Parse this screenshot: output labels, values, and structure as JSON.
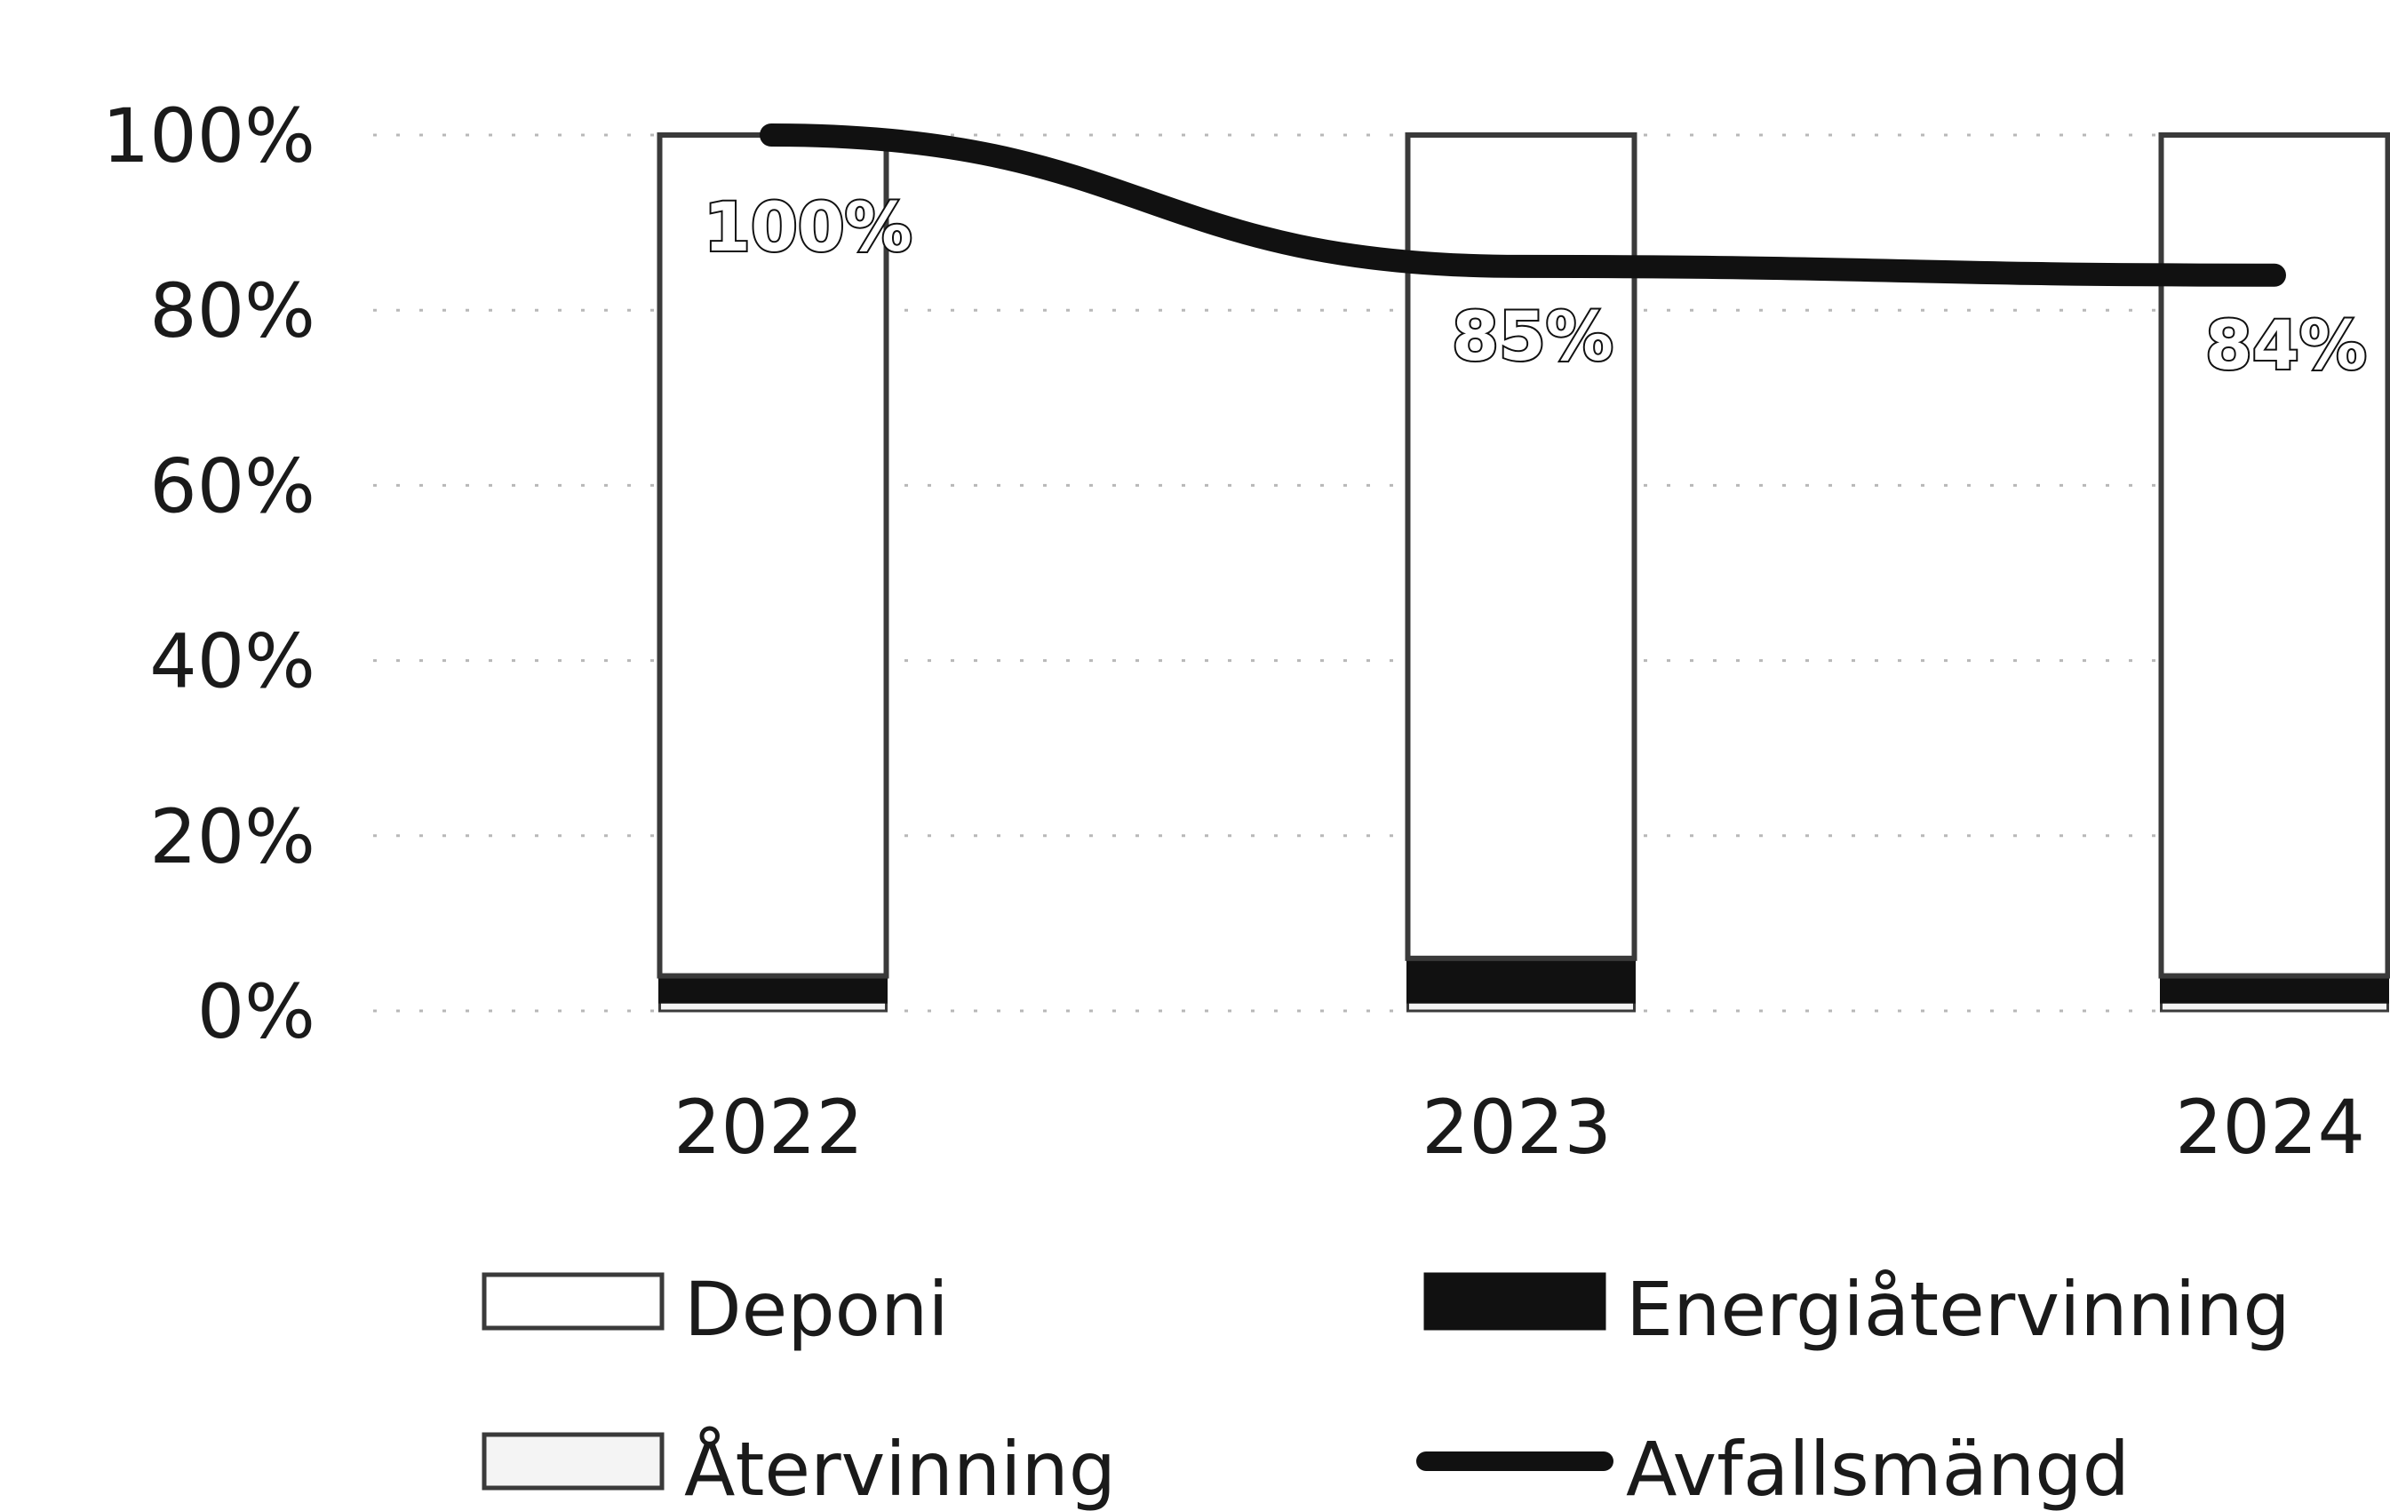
{
  "chart_data": {
    "type": "bar",
    "stacked": true,
    "categories": [
      "2022",
      "2023",
      "2024"
    ],
    "ylim": [
      0,
      100
    ],
    "yticks": [
      "0%",
      "20%",
      "40%",
      "60%",
      "80%",
      "100%"
    ],
    "ytick_values": [
      0,
      20,
      40,
      60,
      80,
      100
    ],
    "grid": "dotted horizontal",
    "legend_position": "bottom",
    "series": [
      {
        "name": "Återvinning",
        "kind": "bar",
        "values": [
          1,
          1,
          1
        ],
        "color": "#f4f4f4"
      },
      {
        "name": "Energiåtervinning",
        "kind": "bar",
        "values": [
          3,
          5,
          3
        ],
        "color": "#111111"
      },
      {
        "name": "Deponi",
        "kind": "bar",
        "values": [
          96,
          94,
          96
        ],
        "color": "#ffffff"
      },
      {
        "name": "Avfallsmängd",
        "kind": "line",
        "values": [
          100,
          85,
          84
        ],
        "color": "#111111"
      }
    ],
    "data_labels": [
      "100%",
      "85%",
      "84%"
    ]
  }
}
